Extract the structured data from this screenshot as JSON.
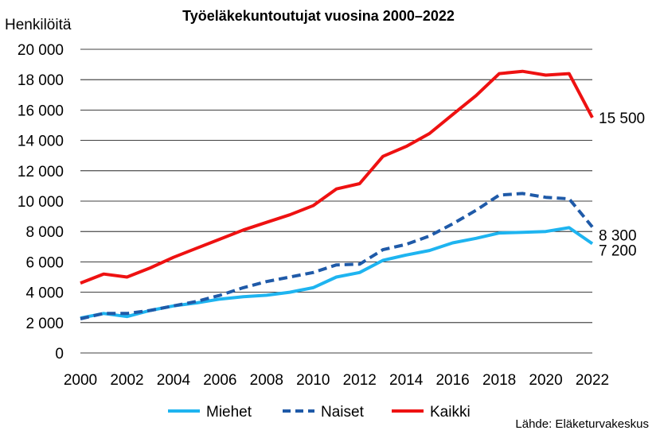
{
  "chart_data": {
    "type": "line",
    "title": "Työeläkekuntoutujat vuosina 2000–2022",
    "ylabel": "Henkilöitä",
    "xlabel": "",
    "x": [
      2000,
      2001,
      2002,
      2003,
      2004,
      2005,
      2006,
      2007,
      2008,
      2009,
      2010,
      2011,
      2012,
      2013,
      2014,
      2015,
      2016,
      2017,
      2018,
      2019,
      2020,
      2021,
      2022
    ],
    "ylim": [
      0,
      20000
    ],
    "xlim": [
      2000,
      2022
    ],
    "yticks": [
      0,
      2000,
      4000,
      6000,
      8000,
      10000,
      12000,
      14000,
      16000,
      18000,
      20000
    ],
    "ytick_labels": [
      "0",
      "2 000",
      "4 000",
      "6 000",
      "8 000",
      "10 000",
      "12 000",
      "14 000",
      "16 000",
      "18 000",
      "20 000"
    ],
    "xticks": [
      2000,
      2002,
      2004,
      2006,
      2008,
      2010,
      2012,
      2014,
      2016,
      2018,
      2020,
      2022
    ],
    "xtick_labels": [
      "2000",
      "2002",
      "2004",
      "2006",
      "2008",
      "2010",
      "2012",
      "2014",
      "2016",
      "2018",
      "2020",
      "2022"
    ],
    "grid": "horizontal",
    "legend_position": "bottom",
    "series": [
      {
        "name": "Miehet",
        "color": "#1eb4f0",
        "style": "solid",
        "values": [
          2300,
          2600,
          2400,
          2800,
          3100,
          3300,
          3550,
          3700,
          3800,
          4000,
          4300,
          5000,
          5300,
          6100,
          6450,
          6750,
          7250,
          7550,
          7900,
          7950,
          8000,
          8250,
          7200
        ]
      },
      {
        "name": "Naiset",
        "color": "#1f5aa8",
        "style": "dashed",
        "values": [
          2250,
          2600,
          2600,
          2800,
          3100,
          3400,
          3800,
          4300,
          4700,
          5000,
          5300,
          5800,
          5850,
          6800,
          7150,
          7700,
          8500,
          9400,
          10400,
          10500,
          10250,
          10150,
          8300
        ]
      },
      {
        "name": "Kaikki",
        "color": "#ee1111",
        "style": "solid",
        "values": [
          4600,
          5200,
          5000,
          5600,
          6300,
          6900,
          7500,
          8100,
          8600,
          9100,
          9700,
          10800,
          11150,
          12950,
          13600,
          14450,
          15700,
          16950,
          18400,
          18550,
          18300,
          18400,
          15500
        ]
      }
    ],
    "end_labels": [
      {
        "series": "Kaikki",
        "text": "15 500"
      },
      {
        "series": "Naiset",
        "text": "8 300"
      },
      {
        "series": "Miehet",
        "text": "7 200"
      }
    ],
    "source": "Lähde: Eläketurvakeskus"
  }
}
